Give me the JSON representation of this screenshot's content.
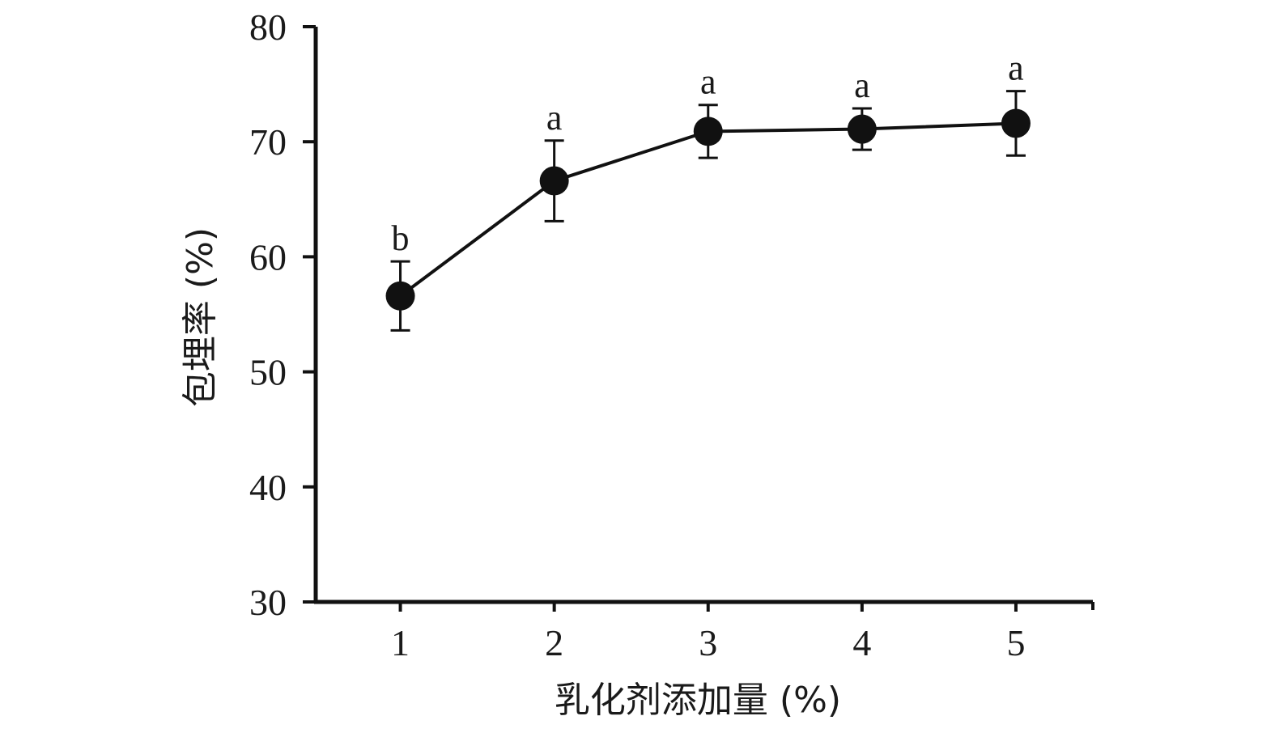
{
  "chart_data": {
    "type": "line",
    "xlabel": "乳化剂添加量 (%)",
    "ylabel": "包埋率 (%)",
    "x": [
      1,
      2,
      3,
      4,
      5
    ],
    "x_ticks": [
      "1",
      "2",
      "3",
      "4",
      "5"
    ],
    "y_ticks": [
      "30",
      "40",
      "50",
      "60",
      "70",
      "80"
    ],
    "ylim": [
      30,
      80
    ],
    "xlim": [
      0.45,
      5.5
    ],
    "grid": false,
    "series": [
      {
        "values": [
          56.6,
          66.6,
          70.9,
          71.1,
          71.6
        ],
        "error": [
          3.0,
          3.5,
          2.3,
          1.8,
          2.8
        ],
        "significance": [
          "b",
          "a",
          "a",
          "a",
          "a"
        ],
        "color": "#111111",
        "marker": "filled-circle"
      }
    ]
  }
}
